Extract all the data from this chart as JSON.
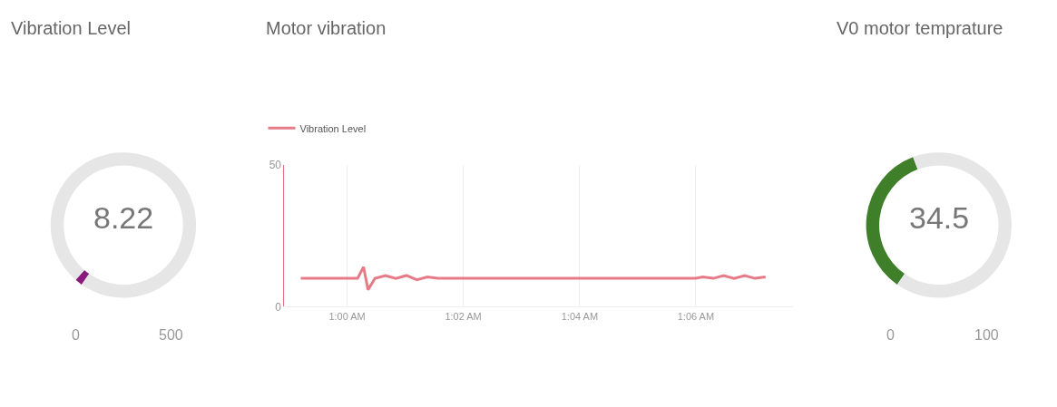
{
  "chart_data": [
    {
      "type": "donut",
      "title": "Vibration Level",
      "categories": [
        null,
        null
      ],
      "values": [
        1.644,
        98.356
      ],
      "colors": [
        "#8b1a7f",
        "#e6e6e6"
      ],
      "annotations": [
        "8.22",
        "0",
        "500"
      ]
    },
    {
      "type": "line",
      "title": "Motor vibration",
      "x": [
        0.9867,
        0.995,
        1.0,
        1.003,
        1.0047,
        1.006,
        1.008,
        1.011,
        1.014,
        1.017,
        1.02,
        1.023,
        1.026,
        1.03,
        1.04,
        1.05,
        1.06,
        1.07,
        1.08,
        1.09,
        1.1,
        1.102,
        1.105,
        1.108,
        1.111,
        1.114,
        1.117,
        1.12
      ],
      "series": [
        {
          "name": "Vibration Level",
          "color": "#e05a6a",
          "values": [
            10,
            10,
            10,
            10,
            14,
            6,
            10,
            11,
            10,
            11,
            9.5,
            10.5,
            10,
            10,
            10,
            10,
            10,
            10,
            10,
            10,
            10,
            10.5,
            10,
            11,
            10,
            11,
            10,
            10.5
          ]
        }
      ],
      "xlim": [
        0.982,
        1.128
      ],
      "xticks": [
        {
          "value": 1.0,
          "label": "1:00 AM"
        },
        {
          "value": 1.0333,
          "label": "1:02 AM"
        },
        {
          "value": 1.0667,
          "label": "1:04 AM"
        },
        {
          "value": 1.1,
          "label": "1:06 AM"
        }
      ],
      "ylim": [
        0,
        50
      ],
      "yticks": [
        0,
        50
      ],
      "grid": true,
      "legend": "top left",
      "marker": "none",
      "line_style": "solid"
    },
    {
      "type": "donut",
      "title": "V0 motor temprature",
      "categories": [
        null,
        null
      ],
      "values": [
        34.5,
        65.5
      ],
      "colors": [
        "#3f7f2a",
        "#e6e6e6"
      ],
      "annotations": [
        "34.5",
        "0",
        "100"
      ]
    }
  ]
}
